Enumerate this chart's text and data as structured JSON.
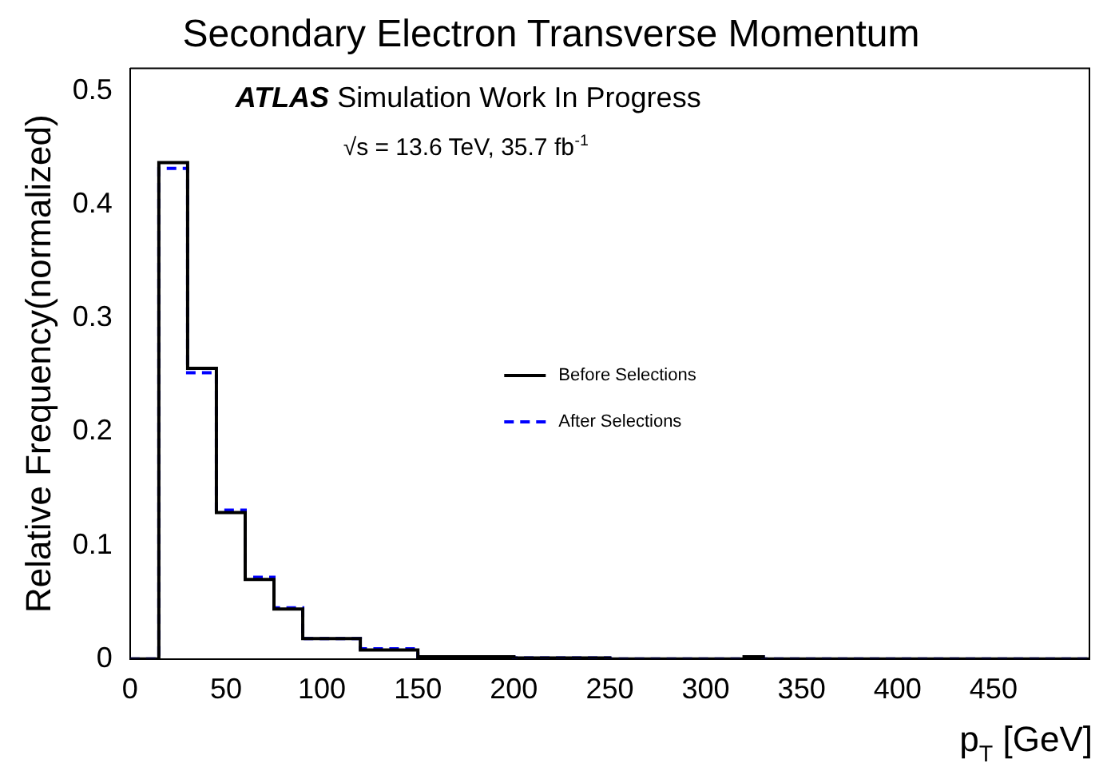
{
  "chart_data": {
    "type": "histogram",
    "title": "Secondary Electron Transverse Momentum",
    "xlabel": "p$_{T}$ [GeV]",
    "ylabel": "Relative Frequency(normalized)",
    "annotations": [
      "ATLAS Simulation Work In Progress",
      "√s = 13.6 TeV, 35.7 fb$^{-1}$"
    ],
    "bins": [
      0,
      15,
      30,
      45,
      60,
      75,
      90,
      120,
      150,
      200,
      250,
      320,
      330,
      500
    ],
    "series": [
      {
        "name": "Before Selections",
        "color": "#000000",
        "line_style": "solid",
        "values": [
          0,
          0.437,
          0.256,
          0.129,
          0.07,
          0.044,
          0.018,
          0.008,
          0.002,
          0.001,
          0,
          0.002,
          0
        ]
      },
      {
        "name": "After Selections",
        "color": "#0000ff",
        "line_style": "dashed",
        "values": [
          0,
          0.432,
          0.252,
          0.131,
          0.072,
          0.045,
          0.018,
          0.009,
          0.002,
          0.001,
          0,
          0.002,
          0
        ]
      }
    ],
    "xlim": [
      0,
      500
    ],
    "xticks": [
      0,
      50,
      100,
      150,
      200,
      250,
      300,
      350,
      400,
      450
    ],
    "ylim": [
      0,
      0.52
    ],
    "yticks": [
      0,
      0.1,
      0.2,
      0.3,
      0.4,
      0.5
    ],
    "grid": false,
    "legend": "center"
  }
}
